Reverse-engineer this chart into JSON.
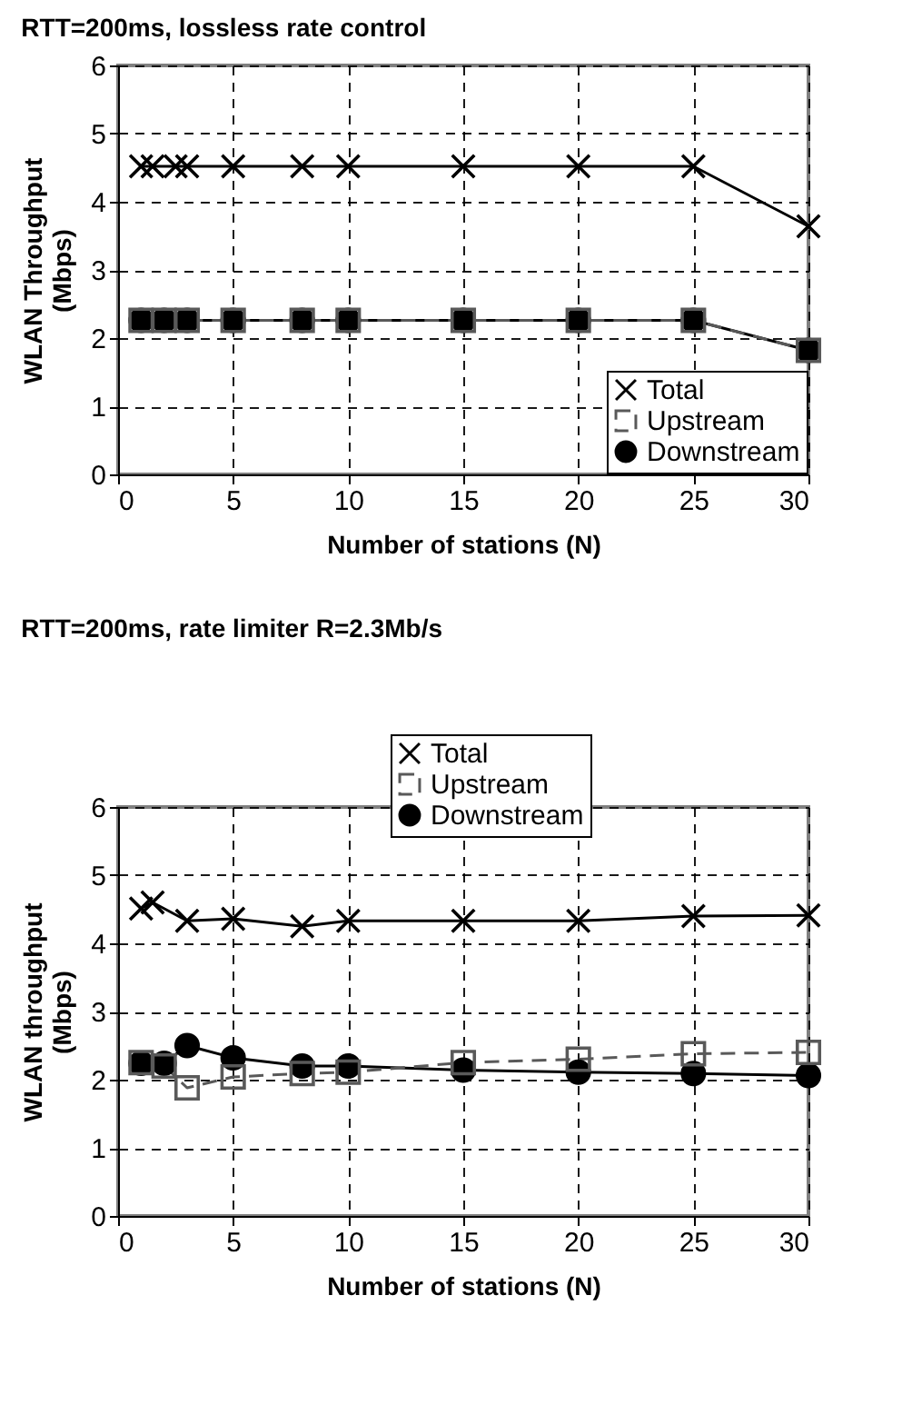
{
  "chart_data": [
    {
      "type": "line",
      "title": "RTT=200ms, lossless rate control",
      "xlabel": "Number of stations (N)",
      "ylabel": "WLAN Throughput (Mbps)",
      "xlim": [
        0,
        30
      ],
      "ylim": [
        0,
        6
      ],
      "xticks": [
        0,
        5,
        10,
        15,
        20,
        25,
        30
      ],
      "yticks": [
        0,
        1,
        2,
        3,
        4,
        5,
        6
      ],
      "grid": true,
      "legend": "bottom right",
      "series": [
        {
          "name": "Total",
          "color": "#000000",
          "marker": "cross",
          "line_style": "solid",
          "x": [
            1,
            1.5,
            2.5,
            3,
            5,
            8,
            10,
            15,
            20,
            25,
            30
          ],
          "values": [
            4.52,
            4.52,
            4.52,
            4.52,
            4.52,
            4.52,
            4.52,
            4.52,
            4.52,
            4.52,
            3.64
          ]
        },
        {
          "name": "Upstream",
          "color": "#595959",
          "marker": "square",
          "line_style": "dashed",
          "x": [
            1,
            2,
            3,
            5,
            8,
            10,
            15,
            20,
            25,
            30
          ],
          "values": [
            2.26,
            2.26,
            2.26,
            2.26,
            2.26,
            2.26,
            2.26,
            2.26,
            2.26,
            1.82
          ]
        },
        {
          "name": "Downstream",
          "color": "#000000",
          "marker": "circle",
          "line_style": "solid",
          "x": [
            1,
            2,
            3,
            5,
            8,
            10,
            15,
            20,
            25,
            30
          ],
          "values": [
            2.26,
            2.26,
            2.26,
            2.26,
            2.26,
            2.26,
            2.26,
            2.26,
            2.26,
            1.82
          ]
        }
      ]
    },
    {
      "type": "line",
      "title": "RTT=200ms, rate limiter R=2.3Mb/s",
      "xlabel": "Number of stations (N)",
      "ylabel": "WLAN throughput (Mbps)",
      "xlim": [
        0,
        30
      ],
      "ylim": [
        0,
        6
      ],
      "xticks": [
        0,
        5,
        10,
        15,
        20,
        25,
        30
      ],
      "yticks": [
        0,
        1,
        2,
        3,
        4,
        5,
        6
      ],
      "grid": true,
      "legend": "top right",
      "series": [
        {
          "name": "Total",
          "color": "#000000",
          "marker": "cross",
          "line_style": "solid",
          "x": [
            1,
            1.5,
            3,
            5,
            8,
            10,
            15,
            20,
            25,
            30
          ],
          "values": [
            4.51,
            4.6,
            4.33,
            4.36,
            4.25,
            4.33,
            4.33,
            4.33,
            4.4,
            4.41
          ]
        },
        {
          "name": "Upstream",
          "color": "#595959",
          "marker": "square",
          "line_style": "dotted",
          "x": [
            1,
            2,
            3,
            5,
            8,
            10,
            15,
            20,
            25,
            30
          ],
          "values": [
            2.25,
            2.2,
            1.88,
            2.04,
            2.09,
            2.11,
            2.25,
            2.3,
            2.38,
            2.4
          ]
        },
        {
          "name": "Downstream",
          "color": "#000000",
          "marker": "circle",
          "line_style": "solid",
          "x": [
            1,
            2,
            3,
            5,
            8,
            10,
            15,
            20,
            25,
            30
          ],
          "values": [
            2.24,
            2.24,
            2.5,
            2.32,
            2.2,
            2.2,
            2.14,
            2.11,
            2.09,
            2.06
          ]
        }
      ]
    }
  ]
}
